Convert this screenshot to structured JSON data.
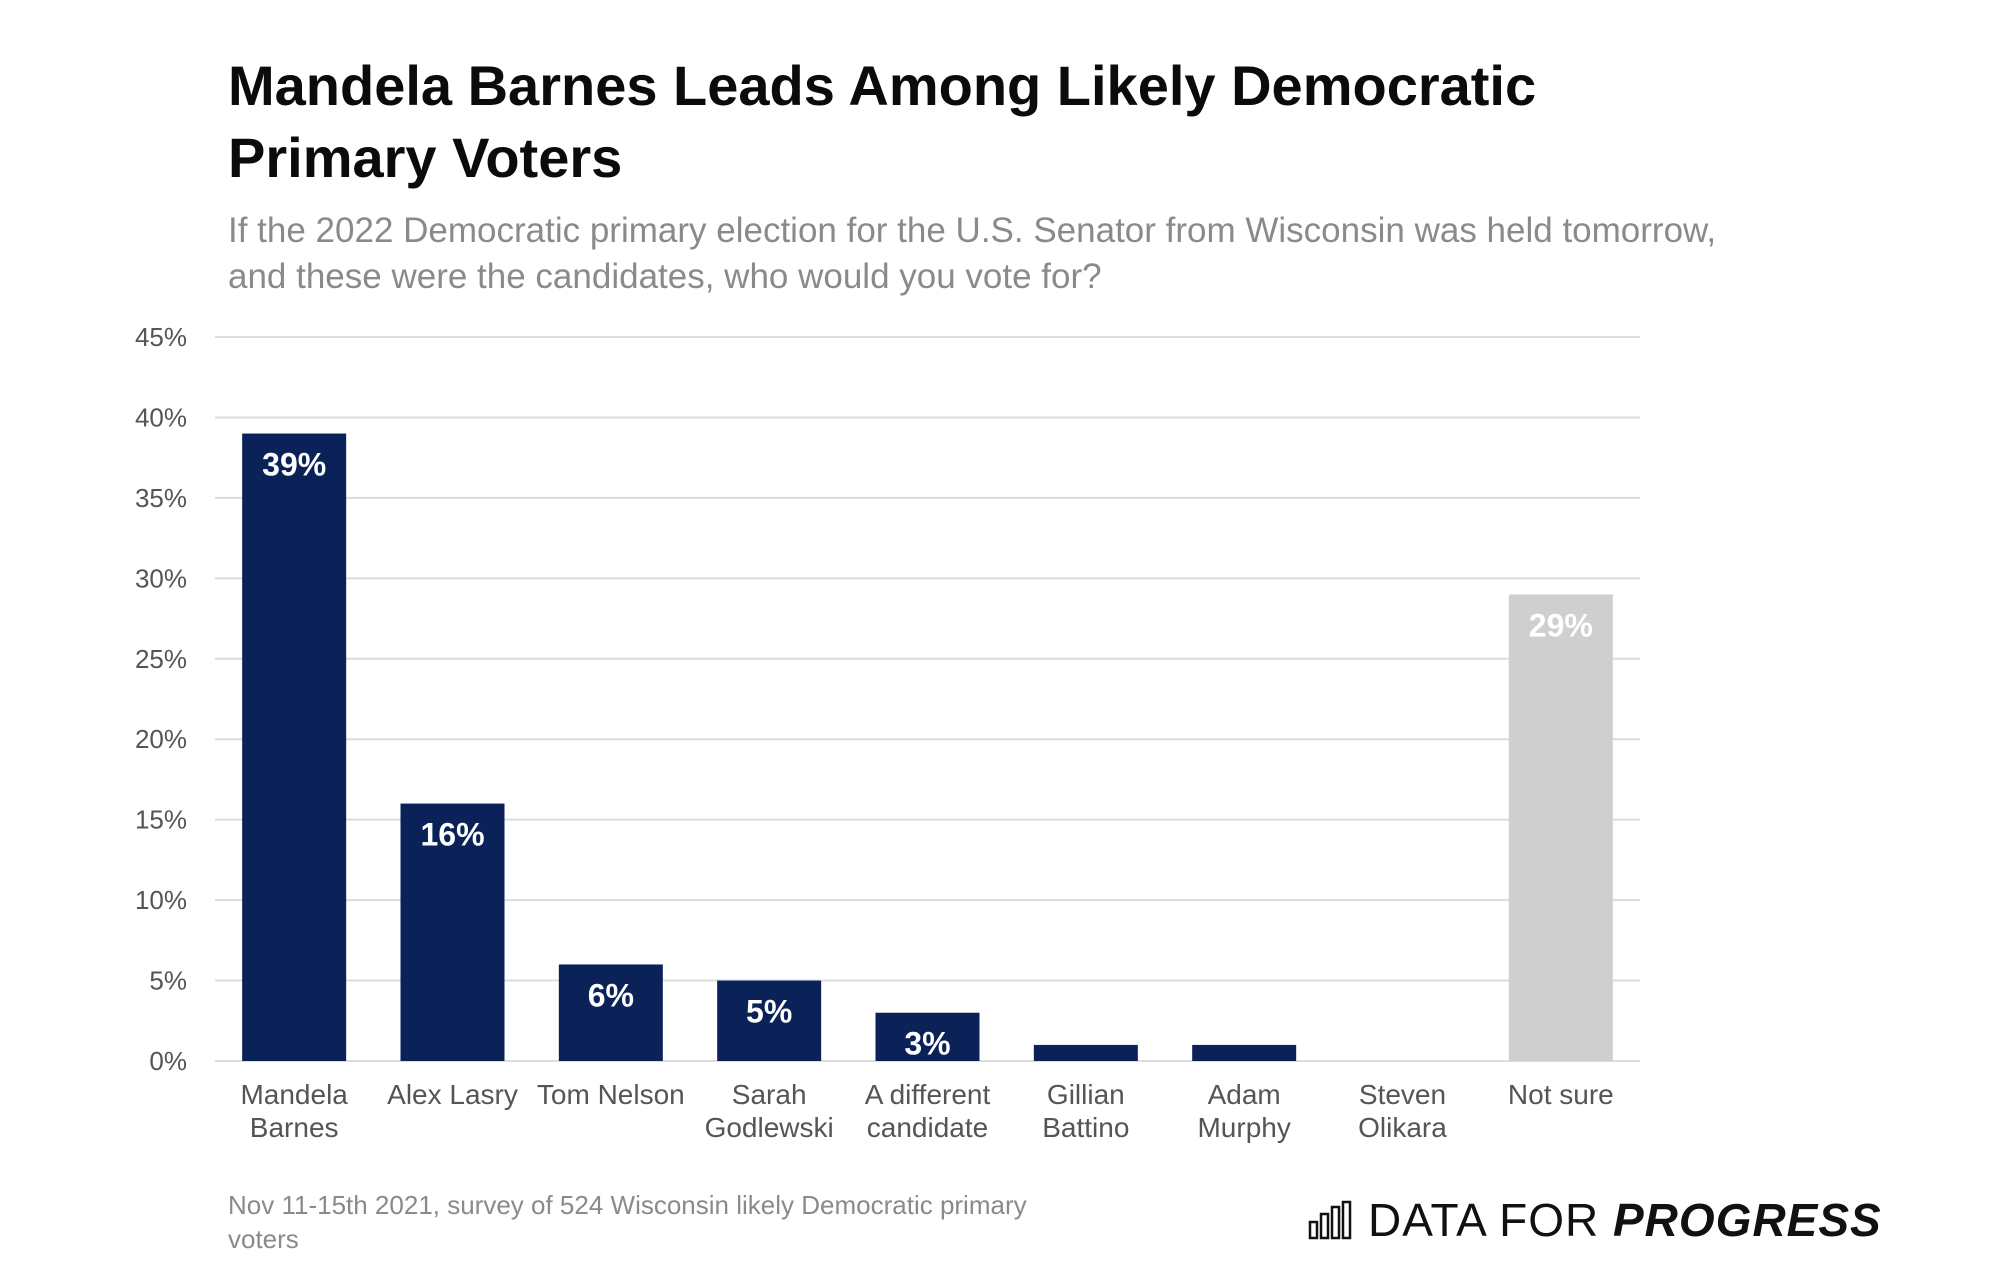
{
  "colors": {
    "bar": "#0b2259",
    "bar_highlight": "#cfcfcf",
    "grid": "#dcdcdc",
    "axis_text": "#555555",
    "label_text": "#ffffff"
  },
  "chart_data": {
    "type": "bar",
    "title": "Mandela Barnes Leads Among Likely Democratic Primary Voters",
    "subtitle": "If the 2022 Democratic primary election for the U.S. Senator from Wisconsin was held tomorrow, and these were the candidates, who would you vote for?",
    "xlabel": "",
    "ylabel": "",
    "ylim": [
      0,
      45
    ],
    "yticks": [
      0,
      5,
      10,
      15,
      20,
      25,
      30,
      35,
      40,
      45
    ],
    "ytick_labels": [
      "0%",
      "5%",
      "10%",
      "15%",
      "20%",
      "25%",
      "30%",
      "35%",
      "40%",
      "45%"
    ],
    "grid": true,
    "categories": [
      [
        "Mandela",
        "Barnes"
      ],
      [
        "Alex Lasry"
      ],
      [
        "Tom Nelson"
      ],
      [
        "Sarah",
        "Godlewski"
      ],
      [
        "A different",
        "candidate"
      ],
      [
        "Gillian",
        "Battino"
      ],
      [
        "Adam",
        "Murphy"
      ],
      [
        "Steven",
        "Olikara"
      ],
      [
        "Not sure"
      ]
    ],
    "values": [
      39,
      16,
      6,
      5,
      3,
      1,
      1,
      0,
      29
    ],
    "data_labels": [
      "39%",
      "16%",
      "6%",
      "5%",
      "3%",
      "",
      "",
      "",
      "29%"
    ],
    "highlight": [
      false,
      false,
      false,
      false,
      false,
      false,
      false,
      false,
      true
    ]
  },
  "footnote": "Nov 11-15th 2021, survey of 524 Wisconsin likely Democratic primary voters",
  "brand": {
    "prefix": "DATA FOR ",
    "emphasis": "PROGRESS",
    "icon": "bar-chart-icon"
  }
}
